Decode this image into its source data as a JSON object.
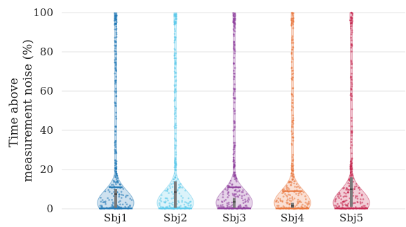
{
  "chart_data": {
    "type": "violin",
    "title": "",
    "ylabel_lines": [
      "Time above",
      "measurement noise (%)"
    ],
    "ylim": [
      0,
      100
    ],
    "yticks": [
      "0",
      "20",
      "40",
      "60",
      "80",
      "100"
    ],
    "grid": true,
    "series": [
      {
        "name": "Sbj1",
        "color": "#1f77b4",
        "median": 7.5,
        "q1": 0.5,
        "q3": 10,
        "mean": 11
      },
      {
        "name": "Sbj2",
        "color": "#5bc8ea",
        "median": 8.5,
        "q1": 0.5,
        "q3": 14,
        "mean": 16
      },
      {
        "name": "Sbj3",
        "color": "#8c3d9a",
        "median": 3.5,
        "q1": 0.5,
        "q3": 5.5,
        "mean": 11
      },
      {
        "name": "Sbj4",
        "color": "#e8743a",
        "median": 1.5,
        "q1": 0.5,
        "q3": 3,
        "mean": 9
      },
      {
        "name": "Sbj5",
        "color": "#c4264f",
        "median": 10,
        "q1": 1,
        "q3": 16,
        "mean": 17
      }
    ]
  }
}
